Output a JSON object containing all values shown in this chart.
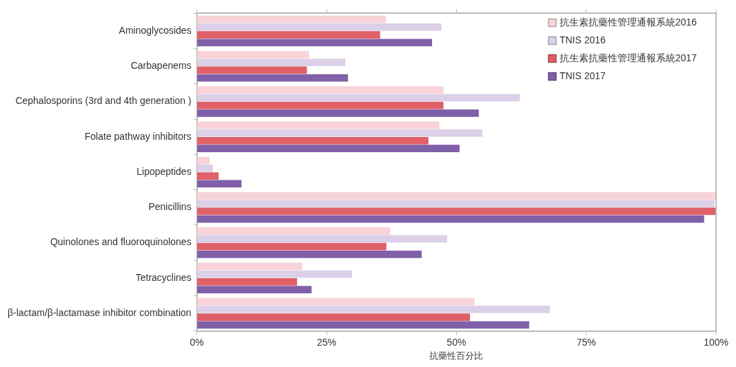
{
  "chart_data": {
    "type": "bar",
    "orientation": "horizontal",
    "xlabel": "抗藥性百分比",
    "categories": [
      "Aminoglycosides",
      "Carbapenems",
      "Cephalosporins (3rd and 4th generation )",
      "Folate pathway inhibitors",
      "Lipopeptides",
      "Penicillins",
      "Quinolones and fluoroquinolones",
      "Tetracyclines",
      "β-lactam/β-lactamase inhibitor combination"
    ],
    "series": [
      {
        "name": "抗生素抗藥性管理通報系統2016",
        "color": "#f8d3d8",
        "values": [
          36.4,
          21.6,
          47.5,
          46.7,
          2.5,
          100,
          37.2,
          20.3,
          53.5
        ]
      },
      {
        "name": "TNIS 2016",
        "color": "#dcd0e8",
        "values": [
          47.1,
          28.6,
          62.2,
          55.0,
          3.1,
          99.7,
          48.2,
          29.9,
          68.0
        ]
      },
      {
        "name": "抗生素抗藥性管理通報系統2017",
        "color": "#e06068",
        "values": [
          35.3,
          21.2,
          47.5,
          44.6,
          4.2,
          100,
          36.5,
          19.3,
          52.6
        ]
      },
      {
        "name": "TNIS 2017",
        "color": "#8060a8",
        "values": [
          45.3,
          29.1,
          54.3,
          50.6,
          8.6,
          97.7,
          43.3,
          22.1,
          64.0
        ]
      }
    ],
    "xlim": [
      0,
      100
    ],
    "xticks": [
      {
        "value": 0,
        "label": "0%"
      },
      {
        "value": 25,
        "label": "25%"
      },
      {
        "value": 50,
        "label": "50%"
      },
      {
        "value": 75,
        "label": "75%"
      },
      {
        "value": 100,
        "label": "100%"
      }
    ],
    "grid": false,
    "legend": "top right"
  }
}
